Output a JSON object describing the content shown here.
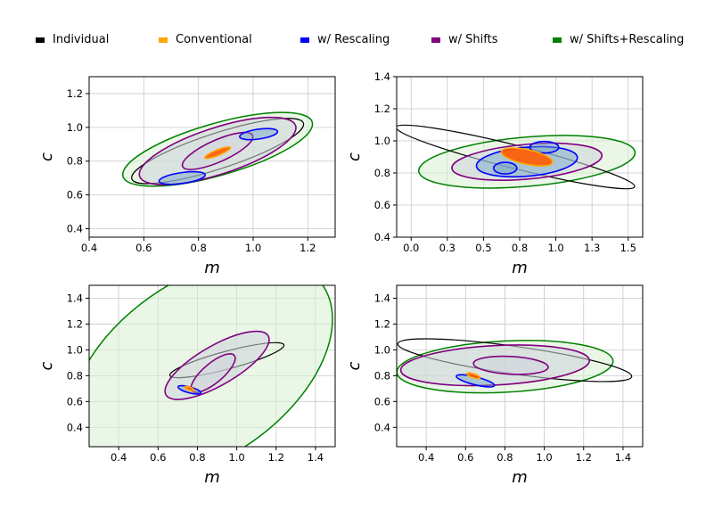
{
  "legend": [
    {
      "label": "Individual",
      "color": "#000000"
    },
    {
      "label": "Conventional",
      "color": "#ffa500"
    },
    {
      "label": "w/ Rescaling",
      "color": "#0000ff"
    },
    {
      "label": "w/ Shifts",
      "color": "#800080"
    },
    {
      "label": "w/ Shifts+Rescaling",
      "color": "#008000"
    }
  ],
  "chart_data": [
    {
      "type": "contour",
      "xlabel": "m",
      "ylabel": "c",
      "xlim": [
        0.4,
        1.3
      ],
      "ylim": [
        0.35,
        1.3
      ],
      "xticks": [
        0.4,
        0.6,
        0.8,
        1.0,
        1.2
      ],
      "yticks": [
        0.4,
        0.6,
        0.8,
        1.0,
        1.2
      ],
      "grid": true,
      "contours": [
        {
          "series": "w/ Shifts+Rescaling",
          "center": [
            0.87,
            0.87
          ],
          "a": 0.36,
          "b": 0.095,
          "angle_deg": 16
        },
        {
          "series": "Individual",
          "center": [
            0.87,
            0.86
          ],
          "a": 0.33,
          "b": 0.065,
          "angle_deg": 18
        },
        {
          "series": "w/ Shifts",
          "center": [
            0.87,
            0.86
          ],
          "a": 0.3,
          "b": 0.085,
          "angle_deg": 18
        },
        {
          "series": "w/ Shifts",
          "center": [
            0.87,
            0.86
          ],
          "a": 0.14,
          "b": 0.04,
          "angle_deg": 24
        },
        {
          "series": "w/ Rescaling",
          "center": [
            0.74,
            0.7
          ],
          "a": 0.085,
          "b": 0.02,
          "angle_deg": 8
        },
        {
          "series": "w/ Rescaling",
          "center": [
            1.02,
            0.96
          ],
          "a": 0.07,
          "b": 0.018,
          "angle_deg": 8
        },
        {
          "series": "Conventional",
          "center": [
            0.87,
            0.85
          ],
          "a": 0.05,
          "b": 0.01,
          "angle_deg": 22
        }
      ]
    },
    {
      "type": "contour",
      "xlabel": "m",
      "ylabel": "c",
      "xlim": [
        -0.1,
        1.6
      ],
      "ylim": [
        0.4,
        1.4
      ],
      "xticks": [
        0.0,
        0.25,
        0.5,
        0.75,
        1.0,
        1.25,
        1.5
      ],
      "yticks": [
        0.4,
        0.6,
        0.8,
        1.0,
        1.2,
        1.4
      ],
      "grid": true,
      "contours": [
        {
          "series": "w/ Shifts+Rescaling",
          "center": [
            0.8,
            0.87
          ],
          "a": 0.75,
          "b": 0.17,
          "angle_deg": 5
        },
        {
          "series": "Individual",
          "center": [
            0.72,
            0.9
          ],
          "a": 0.85,
          "b": 0.08,
          "angle_deg": -14
        },
        {
          "series": "w/ Shifts",
          "center": [
            0.8,
            0.87
          ],
          "a": 0.52,
          "b": 0.12,
          "angle_deg": 5
        },
        {
          "series": "w/ Rescaling",
          "center": [
            0.8,
            0.87
          ],
          "a": 0.35,
          "b": 0.1,
          "angle_deg": 5
        },
        {
          "series": "w/ Rescaling",
          "center": [
            0.65,
            0.83
          ],
          "a": 0.08,
          "b": 0.04,
          "angle_deg": 0
        },
        {
          "series": "w/ Rescaling",
          "center": [
            0.92,
            0.96
          ],
          "a": 0.1,
          "b": 0.04,
          "angle_deg": 0
        },
        {
          "series": "Conventional",
          "center": [
            0.8,
            0.9
          ],
          "a": 0.18,
          "b": 0.05,
          "angle_deg": -12
        }
      ]
    },
    {
      "type": "contour",
      "xlabel": "m",
      "ylabel": "c",
      "xlim": [
        0.25,
        1.5
      ],
      "ylim": [
        0.25,
        1.5
      ],
      "xticks": [
        0.4,
        0.6,
        0.8,
        1.0,
        1.2,
        1.4
      ],
      "yticks": [
        0.4,
        0.6,
        0.8,
        1.0,
        1.2,
        1.4
      ],
      "grid": true,
      "contours": [
        {
          "series": "w/ Shifts+Rescaling",
          "center": [
            0.82,
            0.85
          ],
          "a": 0.75,
          "b": 0.45,
          "angle_deg": 35
        },
        {
          "series": "Individual",
          "center": [
            0.95,
            0.92
          ],
          "a": 0.3,
          "b": 0.045,
          "angle_deg": 15
        },
        {
          "series": "w/ Shifts",
          "center": [
            0.9,
            0.88
          ],
          "a": 0.3,
          "b": 0.1,
          "angle_deg": 30
        },
        {
          "series": "w/ Shifts",
          "center": [
            0.88,
            0.82
          ],
          "a": 0.14,
          "b": 0.05,
          "angle_deg": 40
        },
        {
          "series": "w/ Rescaling",
          "center": [
            0.76,
            0.69
          ],
          "a": 0.06,
          "b": 0.015,
          "angle_deg": -15
        },
        {
          "series": "Conventional",
          "center": [
            0.76,
            0.7
          ],
          "a": 0.025,
          "b": 0.008,
          "angle_deg": -20
        }
      ]
    },
    {
      "type": "contour",
      "xlabel": "m",
      "ylabel": "c",
      "xlim": [
        0.25,
        1.5
      ],
      "ylim": [
        0.25,
        1.5
      ],
      "xticks": [
        0.4,
        0.6,
        0.8,
        1.0,
        1.2,
        1.4
      ],
      "yticks": [
        0.4,
        0.6,
        0.8,
        1.0,
        1.2,
        1.4
      ],
      "grid": true,
      "contours": [
        {
          "series": "w/ Shifts+Rescaling",
          "center": [
            0.8,
            0.87
          ],
          "a": 0.55,
          "b": 0.13,
          "angle_deg": 3
        },
        {
          "series": "Individual",
          "center": [
            0.85,
            0.92
          ],
          "a": 0.6,
          "b": 0.07,
          "angle_deg": -8
        },
        {
          "series": "w/ Shifts",
          "center": [
            0.75,
            0.88
          ],
          "a": 0.48,
          "b": 0.1,
          "angle_deg": 3
        },
        {
          "series": "w/ Shifts",
          "center": [
            0.83,
            0.88
          ],
          "a": 0.19,
          "b": 0.045,
          "angle_deg": -3
        },
        {
          "series": "w/ Rescaling",
          "center": [
            0.65,
            0.76
          ],
          "a": 0.1,
          "b": 0.02,
          "angle_deg": -14
        },
        {
          "series": "Conventional",
          "center": [
            0.64,
            0.8
          ],
          "a": 0.035,
          "b": 0.01,
          "angle_deg": -18
        }
      ]
    }
  ]
}
